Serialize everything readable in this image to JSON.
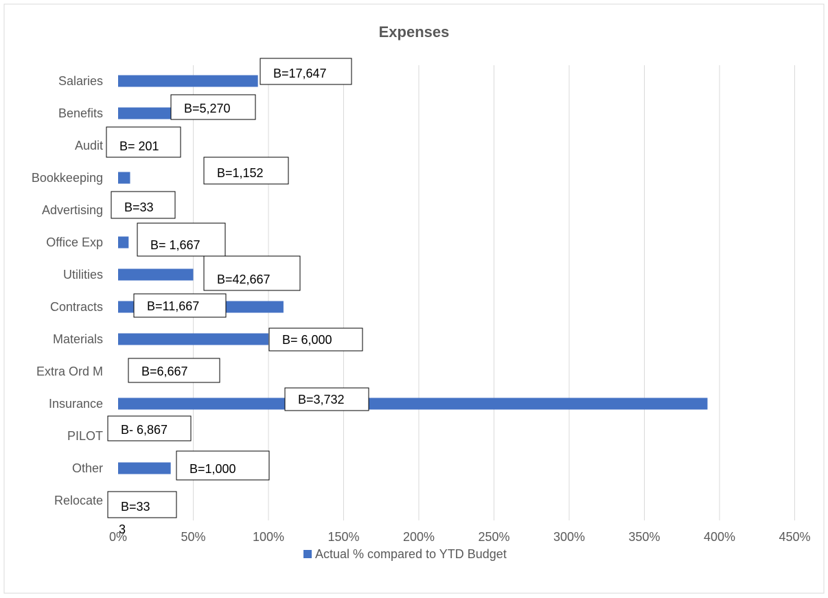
{
  "chart_data": {
    "type": "bar",
    "orientation": "horizontal",
    "title": "Expenses",
    "xlabel": "",
    "ylabel": "",
    "categories": [
      "Salaries",
      "Benefits",
      "Audit",
      "Bookkeeping",
      "Advertising",
      "Office Exp",
      "Utilities",
      "Contracts",
      "Materials",
      "Extra Ord M",
      "Insurance",
      "PILOT",
      "Other",
      "Relocate"
    ],
    "series": [
      {
        "name": "Actual % compared to YTD Budget",
        "color": "#4472c4",
        "values": [
          93,
          35,
          0,
          8,
          0,
          7,
          50,
          110,
          100,
          0,
          392,
          0,
          35,
          0
        ]
      }
    ],
    "xlim": [
      0,
      450
    ],
    "xticks": [
      0,
      50,
      100,
      150,
      200,
      250,
      300,
      350,
      400,
      450
    ],
    "xtick_labels": [
      "0%",
      "50%",
      "100%",
      "150%",
      "200%",
      "250%",
      "300%",
      "350%",
      "400%",
      "450%"
    ],
    "grid": "vertical",
    "legend": "bottom",
    "annotations": [
      {
        "category": "Salaries",
        "text": "B=17,647"
      },
      {
        "category": "Benefits",
        "text": "B=5,270"
      },
      {
        "category": "Audit",
        "text": "B= 201"
      },
      {
        "category": "Bookkeeping",
        "text": "B=1,152"
      },
      {
        "category": "Advertising",
        "text": "B=33"
      },
      {
        "category": "Office Exp",
        "text": "B= 1,667"
      },
      {
        "category": "Utilities",
        "text": "B=42,667"
      },
      {
        "category": "Contracts",
        "text": "B=11,667"
      },
      {
        "category": "Materials",
        "text": "B= 6,000"
      },
      {
        "category": "Extra Ord M",
        "text": "B=6,667"
      },
      {
        "category": "Insurance",
        "text": "B=3,732"
      },
      {
        "category": "PILOT",
        "text": "B- 6,867"
      },
      {
        "category": "Other",
        "text": "B=1,000"
      },
      {
        "category": "Relocate",
        "text": "B=33"
      }
    ],
    "stray_text": "3"
  }
}
